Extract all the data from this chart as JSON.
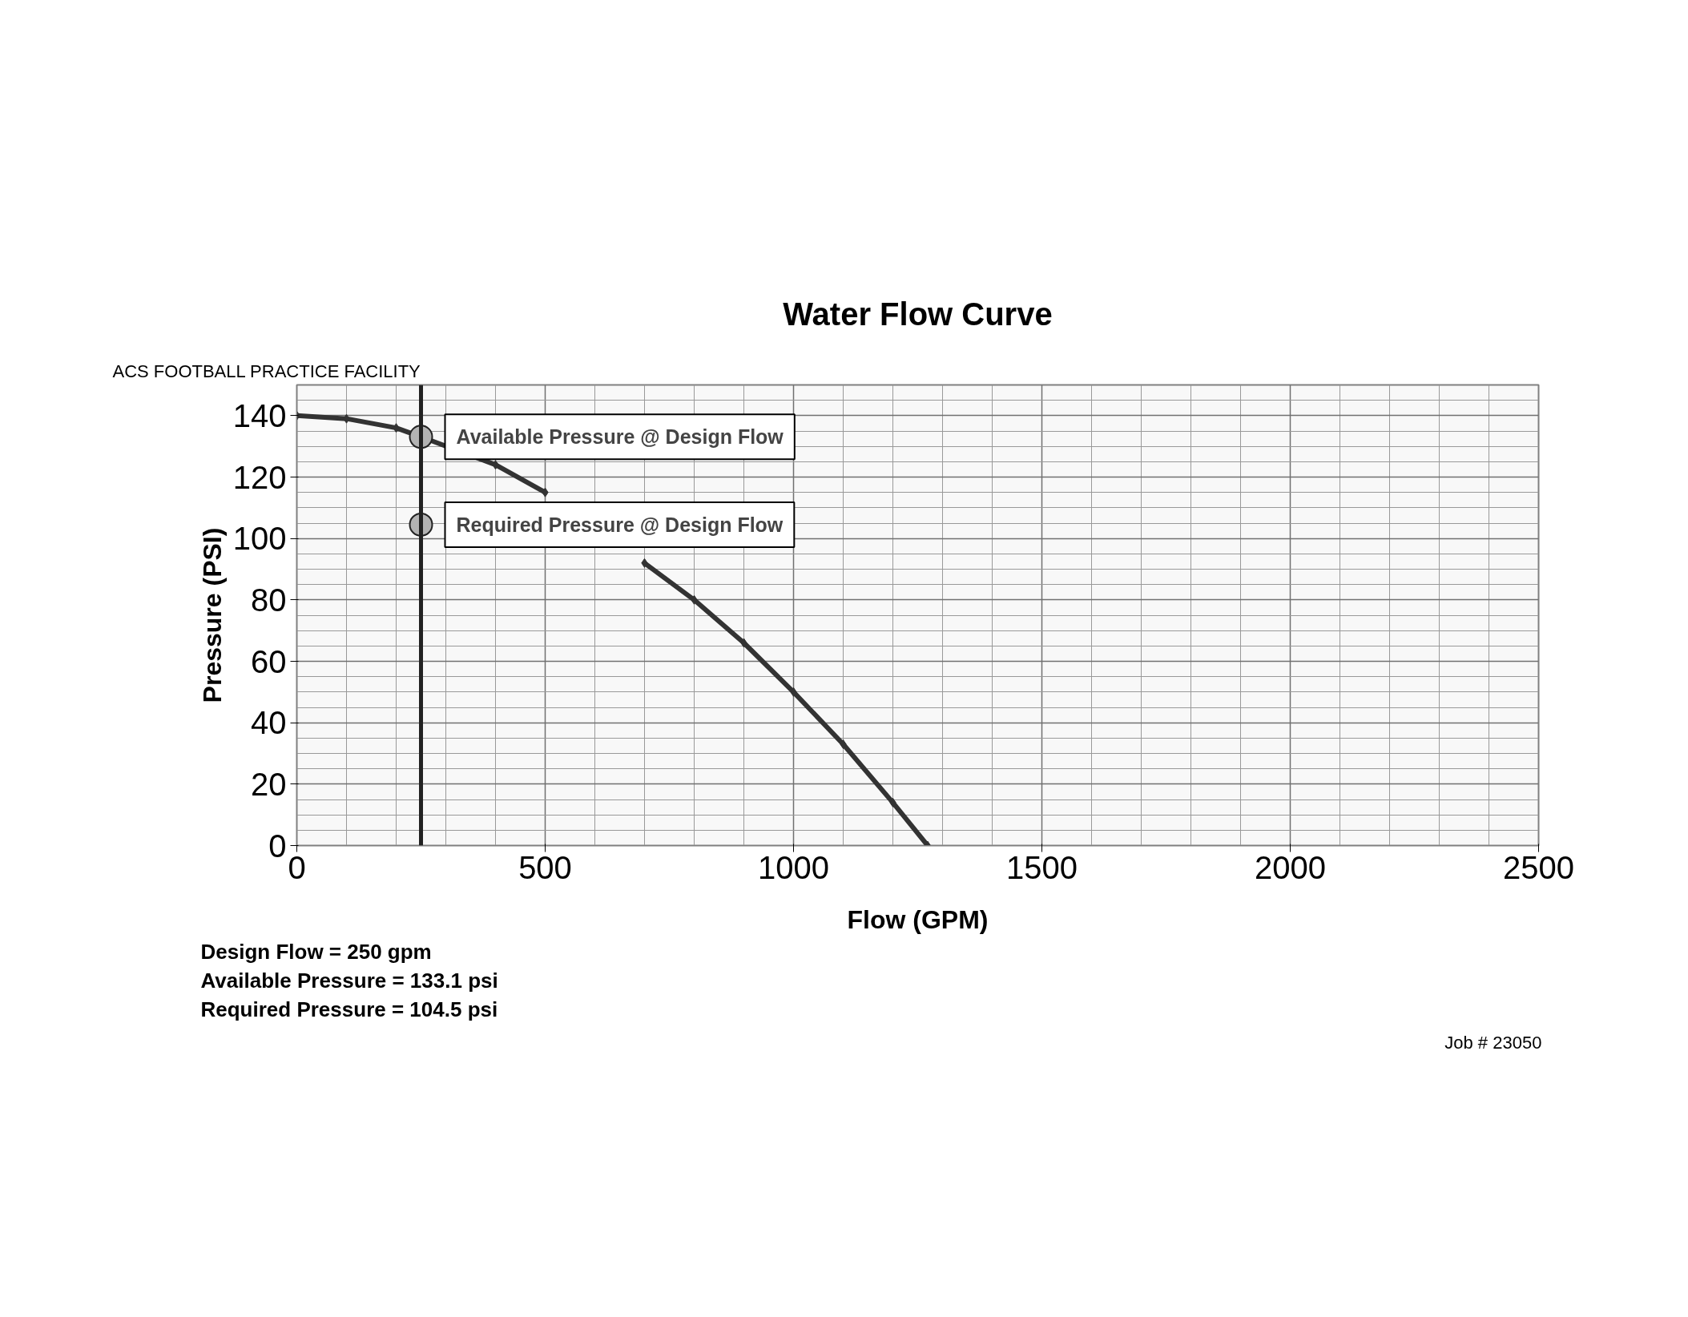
{
  "chart_data": {
    "type": "line",
    "title": "Water Flow Curve",
    "subtitle": "ACS FOOTBALL PRACTICE FACILITY",
    "xlabel": "Flow (GPM)",
    "ylabel": "Pressure (PSI)",
    "series": [
      {
        "color": "#333333",
        "marker": "diamond",
        "x": [
          0,
          100,
          200,
          250,
          400,
          500,
          600,
          700,
          800,
          900,
          1000,
          1100,
          1200,
          1270
        ],
        "values": [
          140,
          139,
          136,
          133.1,
          124,
          115,
          null,
          92,
          80,
          66,
          50,
          33,
          14,
          0
        ]
      },
      {
        "type": "scatter",
        "color": "#b3b3b3",
        "marker": "circle",
        "x": [
          250,
          250
        ],
        "values": [
          133.1,
          104.5
        ]
      }
    ],
    "xlim": [
      0,
      2500
    ],
    "ylim": [
      0,
      150
    ],
    "xticks": [
      0,
      500,
      1000,
      1500,
      2000,
      2500
    ],
    "yticks": [
      0,
      20,
      40,
      60,
      80,
      100,
      120,
      140
    ],
    "grid": true,
    "ref_lines": [
      {
        "axis": "x",
        "value": 250,
        "color": "#222222"
      }
    ],
    "annotations": [
      {
        "text": "Available Pressure @ Design Flow",
        "x": 250,
        "y": 133.1
      },
      {
        "text": "Required Pressure @ Design Flow",
        "x": 250,
        "y": 104.5
      },
      "Design Flow =   250 gpm",
      "Available Pressure =   133.1 psi",
      "Required Pressure =   104.5 psi",
      "Job #  23050"
    ]
  }
}
